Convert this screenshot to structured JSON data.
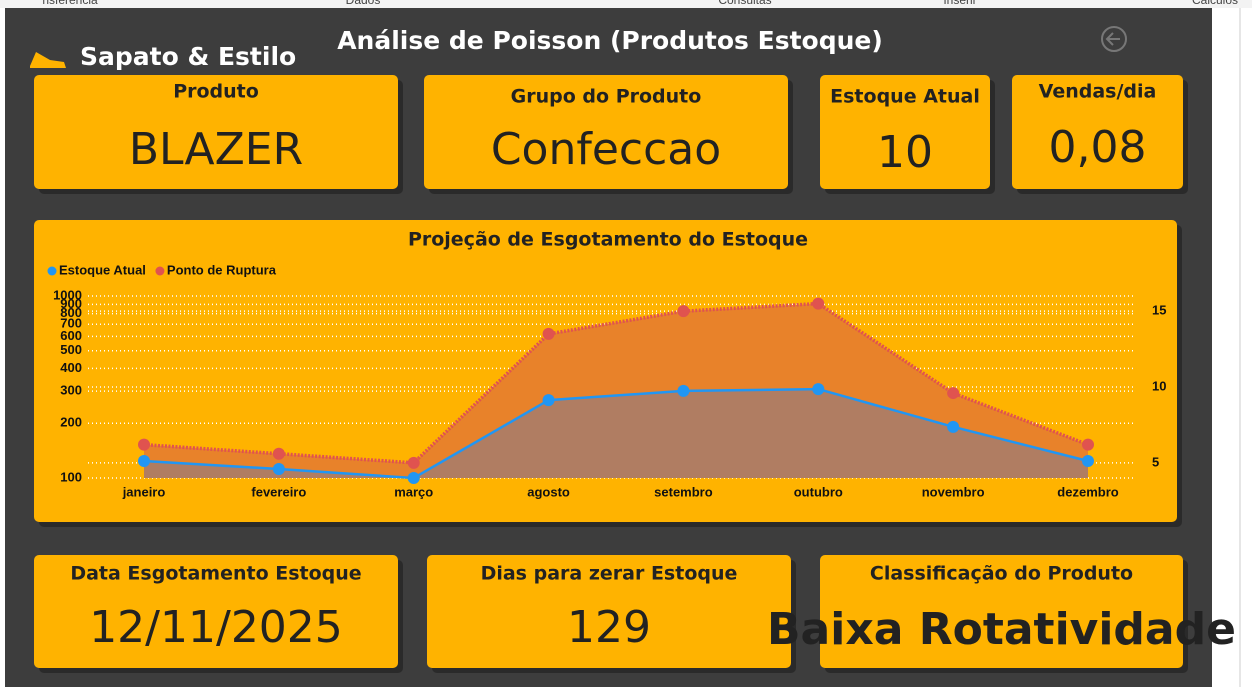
{
  "ribbon": [
    "nsferência",
    "Dados",
    "Consultas",
    "Inserir",
    "Cálculos"
  ],
  "brand": "Sapato & Estilo",
  "title": "Análise de Poisson (Produtos Estoque)",
  "cards": [
    {
      "label": "Produto",
      "value": "BLAZER"
    },
    {
      "label": "Grupo do Produto",
      "value": "Confeccao"
    },
    {
      "label": "Estoque Atual",
      "value": "10"
    },
    {
      "label": "Vendas/dia",
      "value": "0,08"
    },
    {
      "label": "Data Esgotamento Estoque",
      "value": "12/11/2025"
    },
    {
      "label": "Dias para zerar Estoque",
      "value": "129"
    },
    {
      "label": "Classificação do Produto",
      "value": "Baixa Rotatividade"
    }
  ],
  "chart_data": {
    "type": "area-line",
    "title": "Projeção de Esgotamento do Estoque",
    "categories": [
      "janeiro",
      "fevereiro",
      "março",
      "agosto",
      "setembro",
      "outubro",
      "novembro",
      "dezembro"
    ],
    "series": [
      {
        "name": "Estoque Atual",
        "color": "#2196f3",
        "fill": "#b07d62",
        "values": [
          124,
          112,
          100,
          268,
          301,
          308,
          191,
          124
        ]
      },
      {
        "name": "Ponto de Ruptura",
        "color": "#e0534f",
        "fill": "#e8822a",
        "axis": "y2",
        "values": [
          6.2,
          5.6,
          5.0,
          13.5,
          15.0,
          15.5,
          9.6,
          6.2
        ]
      }
    ],
    "ylog": true,
    "ylim": [
      100,
      1000
    ],
    "yticks": [
      100,
      200,
      300,
      400,
      500,
      600,
      700,
      800,
      900,
      1000
    ],
    "y2lim": [
      4,
      16
    ],
    "y2ticks": [
      5,
      10,
      15
    ],
    "grid": true,
    "legend": "top-left"
  }
}
